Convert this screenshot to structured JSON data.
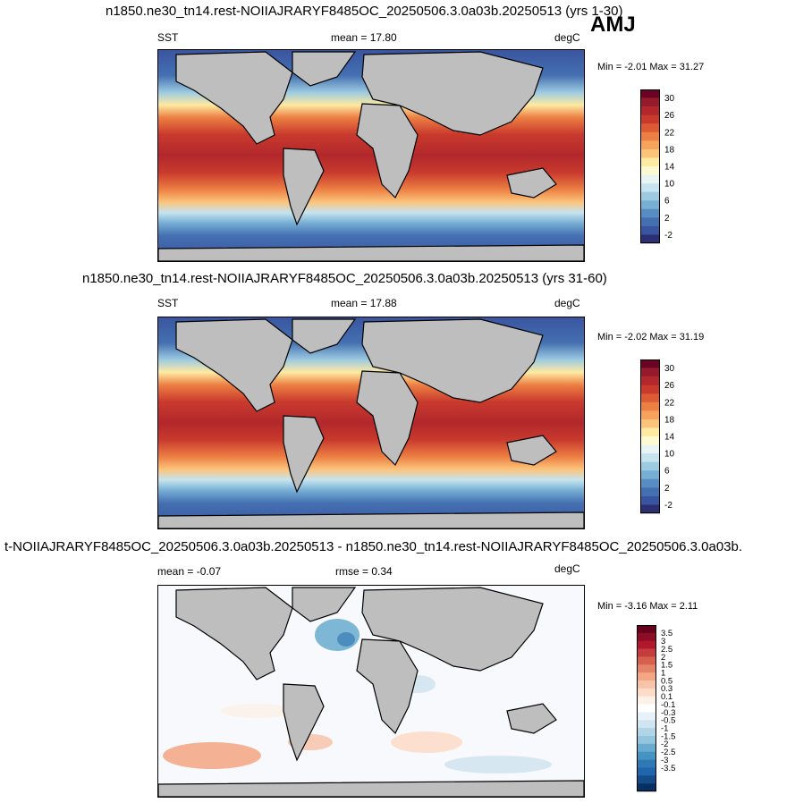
{
  "season": "AMJ",
  "panels": [
    {
      "title": "n1850.ne30_tn14.rest-NOIIAJRARYF8485OC_20250506.3.0a03b.20250513 (yrs 1-30)",
      "left_label": "SST",
      "center_label": "mean =  17.80",
      "units": "degC",
      "minmax": "Min =  -2.01 Max =  31.27"
    },
    {
      "title": "n1850.ne30_tn14.rest-NOIIAJRARYF8485OC_20250506.3.0a03b.20250513 (yrs 31-60)",
      "left_label": "SST",
      "center_label": "mean =  17.88",
      "units": "degC",
      "minmax": "Min =  -2.02 Max =  31.19"
    },
    {
      "title": "t-NOIIAJRARYF8485OC_20250506.3.0a03b.20250513 - n1850.ne30_tn14.rest-NOIIAJRARYF8485OC_20250506.3.0a03b.",
      "left_label": "mean =  -0.07",
      "center_label": "rmse =   0.34",
      "units": "degC",
      "minmax": "Min =  -3.16 Max =   2.11"
    }
  ],
  "colorbars": {
    "sst": {
      "labels": [
        "30",
        "26",
        "22",
        "18",
        "14",
        "10",
        "6",
        "2",
        "-2"
      ],
      "colors": [
        "#6b0424",
        "#951a2b",
        "#b2272c",
        "#c93a2d",
        "#dc5a34",
        "#ec7f43",
        "#f7a35c",
        "#fcc47b",
        "#feeaa1",
        "#fdf9d0",
        "#e8f5f2",
        "#c6e4ef",
        "#9ccae1",
        "#76aed4",
        "#578dc3",
        "#4470b1",
        "#3a55a0",
        "#2c2f72"
      ]
    },
    "diff": {
      "labels": [
        "3.5",
        "3",
        "2.5",
        "2",
        "1.5",
        "1",
        "0.5",
        "0.3",
        "0.1",
        "-0.1",
        "-0.3",
        "-0.5",
        "-1",
        "-1.5",
        "-2",
        "-2.5",
        "-3",
        "-3.5"
      ],
      "colors": [
        "#67001f",
        "#8c0d25",
        "#b2182b",
        "#c43c3c",
        "#d6604d",
        "#e58368",
        "#f4a582",
        "#f8c4a9",
        "#fddbc7",
        "#fdf1ea",
        "#ffffff",
        "#e8f1f7",
        "#d1e5f0",
        "#b1d4e7",
        "#92c5de",
        "#6aaccf",
        "#4393c3",
        "#2f79b5",
        "#2166ac",
        "#134c88",
        "#053061"
      ]
    }
  }
}
